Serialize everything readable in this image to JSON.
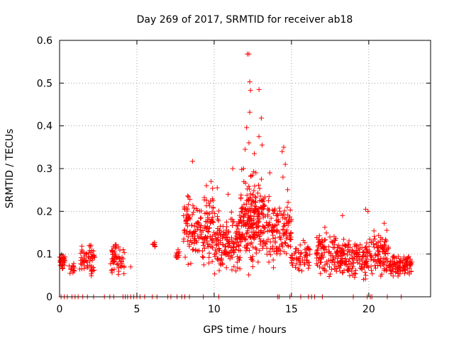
{
  "chart_data": {
    "type": "scatter",
    "title": "Day 269 of 2017, SRMTID for receiver ab18",
    "xlabel": "GPS time / hours",
    "ylabel": "SRMTID / TECUs",
    "xlim": [
      0,
      24
    ],
    "ylim": [
      0,
      0.6
    ],
    "xticks": [
      0,
      5,
      10,
      15,
      20
    ],
    "yticks": [
      0,
      0.1,
      0.2,
      0.3,
      0.4,
      0.5,
      0.6
    ],
    "xtick_labels": [
      "0",
      "5",
      "10",
      "15",
      "20"
    ],
    "ytick_labels": [
      "0",
      "0.1",
      "0.2",
      "0.3",
      "0.4",
      "0.5",
      "0.6"
    ],
    "grid": true,
    "marker": "+",
    "series": [
      {
        "name": "SRMTID",
        "color": "#ff0000",
        "clusters": [
          {
            "x0": 0.0,
            "x1": 0.35,
            "ymin": 0.06,
            "ymax": 0.105,
            "n": 30
          },
          {
            "x0": 0.6,
            "x1": 1.0,
            "ymin": 0.04,
            "ymax": 0.095,
            "n": 15
          },
          {
            "x0": 1.3,
            "x1": 2.3,
            "ymin": 0.03,
            "ymax": 0.14,
            "n": 60
          },
          {
            "x0": 3.3,
            "x1": 4.2,
            "ymin": 0.04,
            "ymax": 0.135,
            "n": 60
          },
          {
            "x0": 6.0,
            "x1": 6.2,
            "ymin": 0.11,
            "ymax": 0.135,
            "n": 8
          },
          {
            "x0": 7.5,
            "x1": 7.8,
            "ymin": 0.08,
            "ymax": 0.12,
            "n": 12
          },
          {
            "x0": 8.0,
            "x1": 10.0,
            "ymin": 0.05,
            "ymax": 0.28,
            "n": 170
          },
          {
            "x0": 10.0,
            "x1": 11.7,
            "ymin": 0.04,
            "ymax": 0.22,
            "n": 160
          },
          {
            "x0": 11.7,
            "x1": 13.2,
            "ymin": 0.04,
            "ymax": 0.32,
            "n": 220
          },
          {
            "x0": 13.2,
            "x1": 15.0,
            "ymin": 0.05,
            "ymax": 0.26,
            "n": 150
          },
          {
            "x0": 15.0,
            "x1": 16.2,
            "ymin": 0.05,
            "ymax": 0.14,
            "n": 60
          },
          {
            "x0": 16.6,
            "x1": 18.4,
            "ymin": 0.03,
            "ymax": 0.17,
            "n": 140
          },
          {
            "x0": 18.4,
            "x1": 20.0,
            "ymin": 0.03,
            "ymax": 0.15,
            "n": 120
          },
          {
            "x0": 20.0,
            "x1": 21.3,
            "ymin": 0.03,
            "ymax": 0.17,
            "n": 100
          },
          {
            "x0": 21.3,
            "x1": 22.8,
            "ymin": 0.04,
            "ymax": 0.11,
            "n": 110
          }
        ],
        "points": [
          [
            4.6,
            0.07
          ],
          [
            8.6,
            0.317
          ],
          [
            9.8,
            0.27
          ],
          [
            10.2,
            0.255
          ],
          [
            12.15,
            0.568
          ],
          [
            12.25,
            0.568
          ],
          [
            12.3,
            0.503
          ],
          [
            12.35,
            0.483
          ],
          [
            12.9,
            0.485
          ],
          [
            13.05,
            0.418
          ],
          [
            12.3,
            0.432
          ],
          [
            12.1,
            0.396
          ],
          [
            12.25,
            0.36
          ],
          [
            12.9,
            0.375
          ],
          [
            13.1,
            0.355
          ],
          [
            12.0,
            0.345
          ],
          [
            12.6,
            0.335
          ],
          [
            13.6,
            0.29
          ],
          [
            14.4,
            0.34
          ],
          [
            14.5,
            0.35
          ],
          [
            14.6,
            0.31
          ],
          [
            14.45,
            0.28
          ],
          [
            11.2,
            0.3
          ],
          [
            11.9,
            0.3
          ],
          [
            12.7,
            0.29
          ],
          [
            19.8,
            0.205
          ],
          [
            19.95,
            0.2
          ],
          [
            18.3,
            0.19
          ],
          [
            21.0,
            0.172
          ],
          [
            10.9,
            0.24
          ],
          [
            9.5,
            0.26
          ]
        ],
        "zero_points_x": [
          0.1,
          0.3,
          0.5,
          0.8,
          1.0,
          1.2,
          1.5,
          1.8,
          2.2,
          2.9,
          3.25,
          3.5,
          4.1,
          4.25,
          4.4,
          4.6,
          4.8,
          5.0,
          5.2,
          5.5,
          6.0,
          6.3,
          7.0,
          7.2,
          7.6,
          7.9,
          8.1,
          8.4,
          9.3,
          10.3,
          14.1,
          14.2,
          14.9,
          15.6,
          16.1,
          16.3,
          16.5,
          17.0,
          19.0,
          19.9,
          20.1,
          20.2,
          21.2,
          22.1
        ]
      }
    ]
  }
}
